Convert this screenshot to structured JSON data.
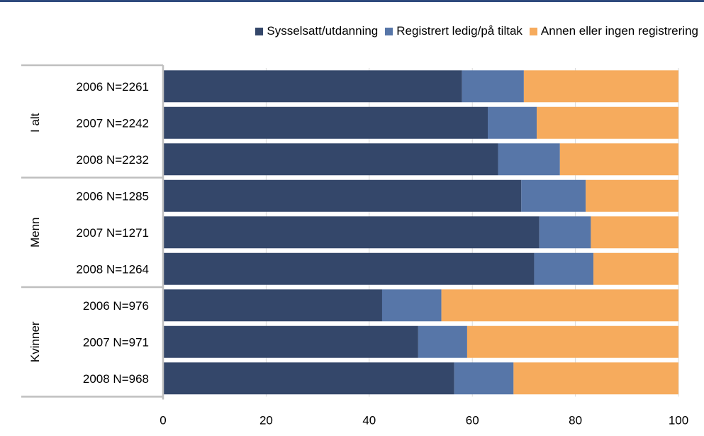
{
  "colors": {
    "employed": "#34476a",
    "registered": "#5776a8",
    "other": "#f6ab5d",
    "grid": "#d9d9d9",
    "axis": "#bfbfbf",
    "header_rule": "#2e4a7d"
  },
  "legend": {
    "items": [
      {
        "label": "Sysselsatt/utdanning",
        "color": "#34476a"
      },
      {
        "label": "Registrert ledig/på tiltak",
        "color": "#5776a8"
      },
      {
        "label": "Annen eller ingen registrering",
        "color": "#f6ab5d"
      }
    ]
  },
  "chart_data": {
    "type": "bar",
    "orientation": "horizontal",
    "stacked": true,
    "xlim": [
      0,
      100
    ],
    "x_ticks": [
      0,
      20,
      40,
      60,
      80,
      100
    ],
    "grid": true,
    "legend_position": "top-right",
    "groups": [
      {
        "name": "I alt",
        "categories": [
          "2006 N=2261",
          "2007 N=2242",
          "2008 N=2232"
        ]
      },
      {
        "name": "Menn",
        "categories": [
          "2006 N=1285",
          "2007 N=1271",
          "2008 N=1264"
        ]
      },
      {
        "name": "Kvinner",
        "categories": [
          "2006 N=976",
          "2007 N=971",
          "2008 N=968"
        ]
      }
    ],
    "categories": [
      "2006 N=2261",
      "2007 N=2242",
      "2008 N=2232",
      "2006 N=1285",
      "2007 N=1271",
      "2008 N=1264",
      "2006 N=976",
      "2007 N=971",
      "2008 N=968"
    ],
    "series": [
      {
        "name": "Sysselsatt/utdanning",
        "values": [
          58,
          63,
          65,
          69.5,
          73,
          72,
          42.5,
          49.5,
          56.5
        ]
      },
      {
        "name": "Registrert ledig/på tiltak",
        "values": [
          12,
          9.5,
          12,
          12.5,
          10,
          11.5,
          11.5,
          9.5,
          11.5
        ]
      },
      {
        "name": "Annen eller ingen registrering",
        "values": [
          30,
          27.5,
          23,
          18,
          17,
          16.5,
          46,
          41,
          32
        ]
      }
    ]
  }
}
